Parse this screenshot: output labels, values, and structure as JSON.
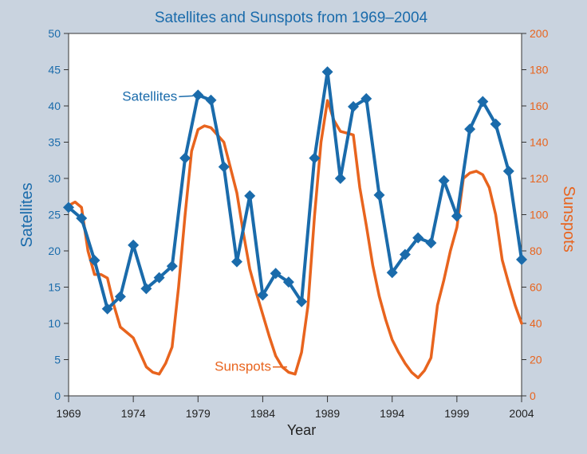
{
  "colors": {
    "background": "#c9d3df",
    "plot_bg": "#ffffff",
    "satellites": "#1a6bab",
    "sunspots": "#e8641e",
    "title": "#1a6bab",
    "axis": "#333333"
  },
  "chart_data": {
    "type": "line",
    "title": "Satellites and Sunspots from 1969–2004",
    "xlabel": "Year",
    "ylabel_left": "Satellites",
    "ylabel_right": "Sunspots",
    "xlim": [
      1969,
      2004
    ],
    "ylim_left": [
      0,
      50
    ],
    "ylim_right": [
      0,
      200
    ],
    "grid": false,
    "x_tick_labels": [
      "1969",
      "1974",
      "1979",
      "1984",
      "1989",
      "1994",
      "1999",
      "2004"
    ],
    "left_ticks": [
      "0",
      "5",
      "10",
      "15",
      "20",
      "25",
      "30",
      "35",
      "40",
      "45",
      "50"
    ],
    "right_ticks": [
      "0",
      "20",
      "40",
      "60",
      "80",
      "100",
      "120",
      "140",
      "160",
      "180",
      "200"
    ],
    "series": [
      {
        "name": "Satellites",
        "axis": "left",
        "marker": "diamond",
        "points": [
          [
            1969,
            26
          ],
          [
            1970,
            24.5
          ],
          [
            1971,
            18.7
          ],
          [
            1972,
            12
          ],
          [
            1973,
            13.7
          ],
          [
            1974,
            20.8
          ],
          [
            1975,
            14.8
          ],
          [
            1976,
            16.3
          ],
          [
            1977,
            17.9
          ],
          [
            1978,
            32.8
          ],
          [
            1979,
            41.5
          ],
          [
            1980,
            40.8
          ],
          [
            1981,
            31.6
          ],
          [
            1982,
            18.5
          ],
          [
            1983,
            27.6
          ],
          [
            1984,
            13.9
          ],
          [
            1985,
            16.9
          ],
          [
            1986,
            15.7
          ],
          [
            1987,
            13
          ],
          [
            1988,
            32.8
          ],
          [
            1989,
            44.7
          ],
          [
            1990,
            30
          ],
          [
            1991,
            39.9
          ],
          [
            1992,
            41
          ],
          [
            1993,
            27.7
          ],
          [
            1994,
            17
          ],
          [
            1995,
            19.5
          ],
          [
            1996,
            21.8
          ],
          [
            1997,
            21.1
          ],
          [
            1998,
            29.7
          ],
          [
            1999,
            24.8
          ],
          [
            2000,
            36.8
          ],
          [
            2001,
            40.6
          ],
          [
            2002,
            37.5
          ],
          [
            2003,
            31
          ],
          [
            2004,
            18.8
          ]
        ]
      },
      {
        "name": "Sunspots",
        "axis": "right",
        "marker": "none",
        "points": [
          [
            1969,
            105
          ],
          [
            1969.5,
            107
          ],
          [
            1970,
            104
          ],
          [
            1970.5,
            80
          ],
          [
            1971,
            67
          ],
          [
            1971.5,
            67
          ],
          [
            1972,
            65
          ],
          [
            1972.5,
            50
          ],
          [
            1973,
            38
          ],
          [
            1973.5,
            35
          ],
          [
            1974,
            32
          ],
          [
            1974.5,
            24
          ],
          [
            1975,
            16
          ],
          [
            1975.5,
            13
          ],
          [
            1976,
            12
          ],
          [
            1976.5,
            18
          ],
          [
            1977,
            27
          ],
          [
            1977.5,
            60
          ],
          [
            1978,
            100
          ],
          [
            1978.5,
            135
          ],
          [
            1979,
            147
          ],
          [
            1979.5,
            149
          ],
          [
            1980,
            148
          ],
          [
            1980.5,
            144
          ],
          [
            1981,
            140
          ],
          [
            1981.5,
            126
          ],
          [
            1982,
            112
          ],
          [
            1982.5,
            90
          ],
          [
            1983,
            70
          ],
          [
            1983.5,
            57
          ],
          [
            1984,
            45
          ],
          [
            1984.5,
            33
          ],
          [
            1985,
            22
          ],
          [
            1985.5,
            16
          ],
          [
            1986,
            13
          ],
          [
            1986.5,
            12
          ],
          [
            1987,
            24
          ],
          [
            1987.5,
            50
          ],
          [
            1988,
            99
          ],
          [
            1988.5,
            140
          ],
          [
            1989,
            163
          ],
          [
            1989.5,
            152
          ],
          [
            1990,
            146
          ],
          [
            1990.5,
            145
          ],
          [
            1991,
            144
          ],
          [
            1991.5,
            115
          ],
          [
            1992,
            94
          ],
          [
            1992.5,
            72
          ],
          [
            1993,
            55
          ],
          [
            1993.5,
            42
          ],
          [
            1994,
            31
          ],
          [
            1994.5,
            24
          ],
          [
            1995,
            18
          ],
          [
            1995.5,
            13
          ],
          [
            1996,
            10
          ],
          [
            1996.5,
            14
          ],
          [
            1997,
            21
          ],
          [
            1997.5,
            50
          ],
          [
            1998,
            64
          ],
          [
            1998.5,
            80
          ],
          [
            1999,
            93
          ],
          [
            1999.5,
            120
          ],
          [
            2000,
            123
          ],
          [
            2000.5,
            124
          ],
          [
            2001,
            122
          ],
          [
            2001.5,
            115
          ],
          [
            2002,
            100
          ],
          [
            2002.5,
            75
          ],
          [
            2003,
            62
          ],
          [
            2003.5,
            50
          ],
          [
            2004,
            40
          ]
        ]
      }
    ],
    "annotations": [
      {
        "text": "Satellites",
        "series": "Satellites"
      },
      {
        "text": "Sunspots",
        "series": "Sunspots"
      }
    ]
  }
}
